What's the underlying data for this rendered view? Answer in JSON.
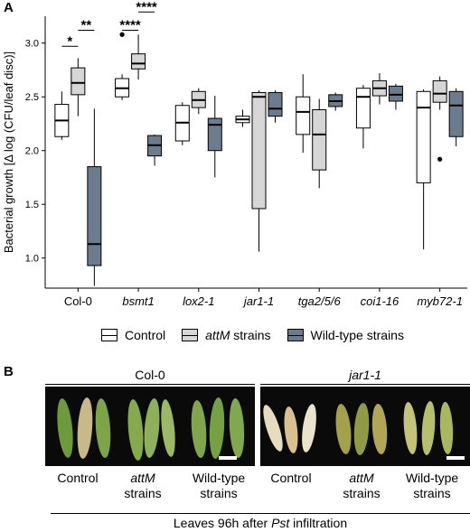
{
  "panel_a_letter": "A",
  "panel_b_letter": "B",
  "chart_data": {
    "type": "boxplot",
    "ylabel": "Bacterial growth [Δ log (CFU/leaf disc)]",
    "ylim": [
      0.72,
      3.25
    ],
    "yticks": [
      "1.0",
      "1.5",
      "2.0",
      "2.5",
      "3.0"
    ],
    "categories": [
      "Col-0",
      "bsmt1",
      "lox2-1",
      "jar1-1",
      "tga2/5/6",
      "coi1-16",
      "myb72-1"
    ],
    "italic_categories": [
      "bsmt1",
      "lox2-1",
      "jar1-1",
      "tga2/5/6",
      "coi1-16",
      "myb72-1"
    ],
    "series": [
      {
        "name": "Control",
        "color": "#ffffff",
        "boxes": [
          {
            "min": 2.1,
            "q1": 2.13,
            "median": 2.28,
            "q3": 2.43,
            "max": 2.55
          },
          {
            "min": 2.47,
            "q1": 2.5,
            "median": 2.58,
            "q3": 2.67,
            "max": 2.71,
            "outliers": [
              3.08
            ]
          },
          {
            "min": 2.05,
            "q1": 2.09,
            "median": 2.26,
            "q3": 2.42,
            "max": 2.45
          },
          {
            "min": 2.22,
            "q1": 2.26,
            "median": 2.29,
            "q3": 2.32,
            "max": 2.38
          },
          {
            "min": 1.98,
            "q1": 2.15,
            "median": 2.36,
            "q3": 2.5,
            "max": 2.71
          },
          {
            "min": 2.02,
            "q1": 2.21,
            "median": 2.5,
            "q3": 2.58,
            "max": 2.61
          },
          {
            "min": 1.08,
            "q1": 1.7,
            "median": 2.4,
            "q3": 2.55,
            "max": 2.57
          }
        ]
      },
      {
        "name": "attM strains",
        "color": "#d6d6d6",
        "boxes": [
          {
            "min": 2.32,
            "q1": 2.52,
            "median": 2.63,
            "q3": 2.77,
            "max": 2.86
          },
          {
            "min": 2.66,
            "q1": 2.76,
            "median": 2.81,
            "q3": 2.9,
            "max": 3.08
          },
          {
            "min": 2.34,
            "q1": 2.4,
            "median": 2.47,
            "q3": 2.55,
            "max": 2.58
          },
          {
            "min": 1.06,
            "q1": 1.46,
            "median": 2.5,
            "q3": 2.54,
            "max": 2.56
          },
          {
            "min": 1.65,
            "q1": 1.82,
            "median": 2.15,
            "q3": 2.38,
            "max": 2.48
          },
          {
            "min": 2.43,
            "q1": 2.51,
            "median": 2.58,
            "q3": 2.65,
            "max": 2.72
          },
          {
            "min": 2.38,
            "q1": 2.45,
            "median": 2.53,
            "q3": 2.65,
            "max": 2.69,
            "outliers": [
              1.92
            ]
          }
        ]
      },
      {
        "name": "Wild-type strains",
        "color": "#6b7c8e",
        "boxes": [
          {
            "min": 0.74,
            "q1": 0.93,
            "median": 1.13,
            "q3": 1.85,
            "max": 2.39
          },
          {
            "min": 1.86,
            "q1": 1.95,
            "median": 2.05,
            "q3": 2.14,
            "max": 2.15
          },
          {
            "min": 1.75,
            "q1": 2.0,
            "median": 2.24,
            "q3": 2.3,
            "max": 2.51
          },
          {
            "min": 2.26,
            "q1": 2.32,
            "median": 2.39,
            "q3": 2.54,
            "max": 2.56
          },
          {
            "min": 2.37,
            "q1": 2.41,
            "median": 2.46,
            "q3": 2.52,
            "max": 2.54
          },
          {
            "min": 2.38,
            "q1": 2.46,
            "median": 2.52,
            "q3": 2.6,
            "max": 2.62
          },
          {
            "min": 2.04,
            "q1": 2.13,
            "median": 2.42,
            "q3": 2.55,
            "max": 2.58
          }
        ]
      }
    ],
    "significance": [
      {
        "category": "Col-0",
        "label": "*",
        "from": "Control",
        "to": "attM strains",
        "y": 2.97
      },
      {
        "category": "Col-0",
        "label": "**",
        "from": "attM strains",
        "to": "Wild-type strains",
        "y": 3.12
      },
      {
        "category": "bsmt1",
        "label": "****",
        "from": "Control",
        "to": "attM strains",
        "y": 3.12
      },
      {
        "category": "bsmt1",
        "label": "****",
        "from": "attM strains",
        "to": "Wild-type strains",
        "y": 3.29
      }
    ],
    "legend_position": "bottom",
    "grid": false
  },
  "legend": {
    "items": [
      {
        "label": "Control",
        "italic": ""
      },
      {
        "label": " strains",
        "italic": "attM"
      },
      {
        "label": "Wild-type strains",
        "italic": ""
      }
    ]
  },
  "panel_b": {
    "left_title": "Col-0",
    "right_title": "jar1-1",
    "left_labels": [
      {
        "line1": "Control",
        "line2": ""
      },
      {
        "line1": "attM",
        "line2": "strains"
      },
      {
        "line1": "Wild-type",
        "line2": "strains"
      }
    ],
    "right_labels": [
      {
        "line1": "Control",
        "line2": ""
      },
      {
        "line1": "attM",
        "line2": "strains"
      },
      {
        "line1": "Wild-type",
        "line2": "strains"
      }
    ],
    "caption_before": "Leaves 96h after ",
    "caption_italic": "Pst",
    "caption_after": " infiltration"
  }
}
